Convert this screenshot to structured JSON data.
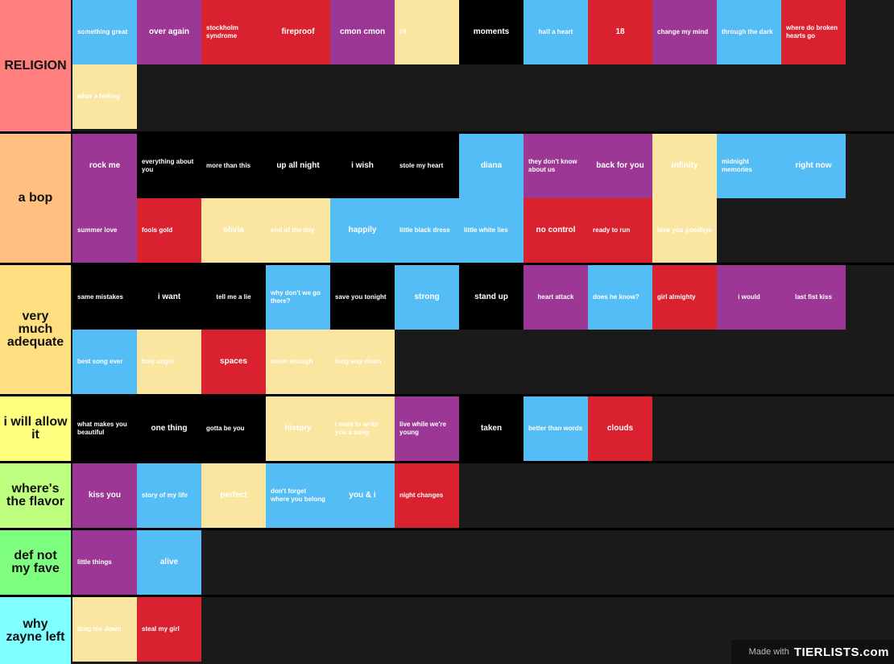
{
  "tiers": [
    {
      "label": "RELIGION",
      "color": "#ff7f7f",
      "items": [
        {
          "text": "something great",
          "color": "#54bdf5"
        },
        {
          "text": "over again",
          "color": "#9c3795"
        },
        {
          "text": "stockholm syndrome",
          "color": "#da2130"
        },
        {
          "text": "fireproof",
          "color": "#da2130"
        },
        {
          "text": "cmon cmon",
          "color": "#9c3795"
        },
        {
          "text": "i'll ",
          "color": "#fbe6a1"
        },
        {
          "text": "moments",
          "color": "#000000"
        },
        {
          "text": "half a heart",
          "color": "#54bdf5"
        },
        {
          "text": "18",
          "color": "#da2130"
        },
        {
          "text": "change my mind",
          "color": "#9c3795"
        },
        {
          "text": "through the dark",
          "color": "#54bdf5"
        },
        {
          "text": "where do broken hearts go",
          "color": "#da2130"
        },
        {
          "text": "what a feeling",
          "color": "#fbe6a1"
        }
      ]
    },
    {
      "label": "a bop",
      "color": "#ffbf7f",
      "items": [
        {
          "text": "rock me",
          "color": "#9c3795"
        },
        {
          "text": "everything about you",
          "color": "#000000"
        },
        {
          "text": "more than this",
          "color": "#000000"
        },
        {
          "text": "up all night",
          "color": "#000000"
        },
        {
          "text": "i wish",
          "color": "#000000"
        },
        {
          "text": "stole my heart",
          "color": "#000000"
        },
        {
          "text": "diana",
          "color": "#54bdf5"
        },
        {
          "text": "they don't know about us",
          "color": "#9c3795"
        },
        {
          "text": "back for you",
          "color": "#9c3795"
        },
        {
          "text": "infinity",
          "color": "#fbe6a1"
        },
        {
          "text": "midnight memories",
          "color": "#54bdf5"
        },
        {
          "text": "right now",
          "color": "#54bdf5"
        },
        {
          "text": "summer love",
          "color": "#9c3795"
        },
        {
          "text": "fools gold",
          "color": "#da2130"
        },
        {
          "text": "olivia",
          "color": "#fbe6a1"
        },
        {
          "text": "end of the day",
          "color": "#fbe6a1"
        },
        {
          "text": "happily",
          "color": "#54bdf5"
        },
        {
          "text": "little black dress",
          "color": "#54bdf5"
        },
        {
          "text": "little white lies",
          "color": "#54bdf5"
        },
        {
          "text": "no control",
          "color": "#da2130"
        },
        {
          "text": "ready to run",
          "color": "#da2130"
        },
        {
          "text": "love you goodbye",
          "color": "#fbe6a1"
        }
      ]
    },
    {
      "label": "very much adequate",
      "color": "#ffdf7f",
      "items": [
        {
          "text": "same mistakes",
          "color": "#000000"
        },
        {
          "text": "i want",
          "color": "#000000"
        },
        {
          "text": "tell me a lie",
          "color": "#000000"
        },
        {
          "text": "why don't we go there?",
          "color": "#54bdf5"
        },
        {
          "text": "save you tonight",
          "color": "#000000"
        },
        {
          "text": "strong",
          "color": "#54bdf5"
        },
        {
          "text": "stand up",
          "color": "#000000"
        },
        {
          "text": "heart attack",
          "color": "#9c3795"
        },
        {
          "text": "does he know?",
          "color": "#54bdf5"
        },
        {
          "text": "girl almighty",
          "color": "#da2130"
        },
        {
          "text": "i would",
          "color": "#9c3795"
        },
        {
          "text": "last fist kiss",
          "color": "#9c3795"
        },
        {
          "text": "best song ever",
          "color": "#54bdf5"
        },
        {
          "text": "holy angel",
          "color": "#fbe6a1"
        },
        {
          "text": "spaces",
          "color": "#da2130"
        },
        {
          "text": "never enough",
          "color": "#fbe6a1"
        },
        {
          "text": "long way down",
          "color": "#fbe6a1"
        }
      ]
    },
    {
      "label": "i will allow it",
      "color": "#ffff7f",
      "items": [
        {
          "text": "what makes you beautiful",
          "color": "#000000"
        },
        {
          "text": "one thing",
          "color": "#000000"
        },
        {
          "text": "gotta be you",
          "color": "#000000"
        },
        {
          "text": "history",
          "color": "#fbe6a1"
        },
        {
          "text": "i want to write you a song",
          "color": "#fbe6a1"
        },
        {
          "text": "live while we're young",
          "color": "#9c3795"
        },
        {
          "text": "taken",
          "color": "#000000"
        },
        {
          "text": "better than words",
          "color": "#54bdf5"
        },
        {
          "text": "clouds",
          "color": "#da2130"
        }
      ]
    },
    {
      "label": "where's the flavor",
      "color": "#bfff7f",
      "items": [
        {
          "text": "kiss you",
          "color": "#9c3795"
        },
        {
          "text": "story of my life",
          "color": "#54bdf5"
        },
        {
          "text": "perfect",
          "color": "#fbe6a1"
        },
        {
          "text": "don't forget where you belong",
          "color": "#54bdf5"
        },
        {
          "text": "you & i",
          "color": "#54bdf5"
        },
        {
          "text": "night changes",
          "color": "#da2130"
        }
      ]
    },
    {
      "label": "def not my fave",
      "color": "#7fff7f",
      "items": [
        {
          "text": "little things",
          "color": "#9c3795"
        },
        {
          "text": "alive",
          "color": "#54bdf5"
        }
      ]
    },
    {
      "label": "why zayne left",
      "color": "#7fffff",
      "items": [
        {
          "text": "drag me down",
          "color": "#fbe6a1"
        },
        {
          "text": "steal my girl",
          "color": "#da2130"
        }
      ]
    }
  ],
  "watermark": {
    "made_with": "Made with",
    "logo": "TIERLISTS.com"
  }
}
